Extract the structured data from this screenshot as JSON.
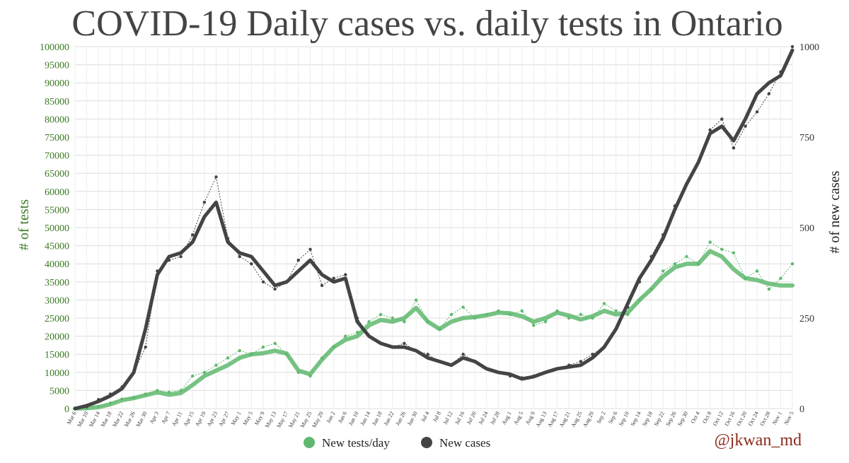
{
  "chart_data": {
    "type": "line",
    "title": "COVID-19 Daily cases vs. daily tests in Ontario",
    "ylabel_left": "# of tests",
    "ylabel_right": "# of new cases",
    "ylim_left": [
      0,
      100000
    ],
    "ylim_right": [
      0,
      1000
    ],
    "yticks_left": [
      "0",
      "5000",
      "10000",
      "15000",
      "20000",
      "25000",
      "30000",
      "35000",
      "40000",
      "45000",
      "50000",
      "55000",
      "60000",
      "65000",
      "70000",
      "75000",
      "80000",
      "85000",
      "90000",
      "95000",
      "100000"
    ],
    "yticks_right": [
      "0",
      "250",
      "500",
      "750",
      "1000"
    ],
    "xticks": [
      "Mar 6",
      "Mar 10",
      "Mar 14",
      "Mar 18",
      "Mar 22",
      "Mar 26",
      "Mar 30",
      "Apr 3",
      "Apr 7",
      "Apr 11",
      "Apr 15",
      "Apr 19",
      "Apr 23",
      "Apr 27",
      "May 1",
      "May 5",
      "May 9",
      "May 13",
      "May 17",
      "May 21",
      "May 25",
      "May 29",
      "Jun 2",
      "Jun 6",
      "Jun 10",
      "Jun 14",
      "Jun 18",
      "Jun 22",
      "Jun 26",
      "Jun 30",
      "Jul 4",
      "Jul 8",
      "Jul 12",
      "Jul 16",
      "Jul 20",
      "Jul 24",
      "Jul 28",
      "Aug 1",
      "Aug 5",
      "Aug 9",
      "Aug 13",
      "Aug 17",
      "Aug 21",
      "Aug 25",
      "Aug 29",
      "Sep 2",
      "Sep 6",
      "Sep 10",
      "Sep 14",
      "Sep 18",
      "Sep 22",
      "Sep 26",
      "Sep 30",
      "Oct 4",
      "Oct 8",
      "Oct 12",
      "Oct 16",
      "Oct 20",
      "Oct 24",
      "Oct 28",
      "Nov 1",
      "Nov 5"
    ],
    "series": [
      {
        "name": "New tests/day",
        "axis": "left",
        "color": "#5fb86f",
        "x": [
          0,
          4,
          8,
          12,
          16,
          20,
          24,
          28,
          32,
          36,
          40,
          44,
          48,
          52,
          56,
          60,
          64,
          68,
          72,
          76,
          80,
          84,
          88,
          92,
          96,
          100,
          104,
          108,
          112,
          116,
          120,
          124,
          128,
          132,
          136,
          140,
          144,
          148,
          152,
          156,
          160,
          164,
          168,
          172,
          176,
          180,
          184,
          188,
          192,
          196,
          200,
          204,
          208,
          212,
          216,
          220,
          224,
          228,
          232,
          236,
          240,
          244
        ],
        "daily": [
          0,
          200,
          600,
          1500,
          2600,
          3000,
          4000,
          5000,
          4500,
          5000,
          9000,
          10000,
          12000,
          14000,
          16000,
          15000,
          17000,
          18000,
          15000,
          10000,
          9000,
          14000,
          17000,
          20000,
          21000,
          24000,
          26000,
          25000,
          24000,
          30000,
          24000,
          22000,
          26000,
          28000,
          25000,
          26000,
          27000,
          26000,
          27000,
          23000,
          24000,
          27000,
          25000,
          26000,
          25000,
          29000,
          27000,
          26000,
          30000,
          33000,
          38000,
          40000,
          42000,
          40000,
          46000,
          44000,
          43000,
          36000,
          38000,
          33000,
          36000,
          40000
        ],
        "avg": [
          0,
          100,
          400,
          1200,
          2300,
          2900,
          3700,
          4500,
          3800,
          4300,
          6500,
          9000,
          10500,
          12000,
          14000,
          15000,
          15300,
          16000,
          15200,
          10500,
          9500,
          13500,
          17000,
          19000,
          20000,
          23000,
          24500,
          24000,
          25000,
          27800,
          24000,
          22000,
          24000,
          25000,
          25300,
          25800,
          26500,
          26300,
          25500,
          24000,
          25000,
          26500,
          25700,
          24600,
          25500,
          27000,
          26000,
          26500,
          30000,
          33000,
          36500,
          39000,
          40000,
          40000,
          43500,
          42000,
          38500,
          36000,
          35500,
          34500,
          34000,
          34000
        ]
      },
      {
        "name": "New cases",
        "axis": "right",
        "color": "#444444",
        "x": [
          0,
          4,
          8,
          12,
          16,
          20,
          24,
          28,
          32,
          36,
          40,
          44,
          48,
          52,
          56,
          60,
          64,
          68,
          72,
          76,
          80,
          84,
          88,
          92,
          96,
          100,
          104,
          108,
          112,
          116,
          120,
          124,
          128,
          132,
          136,
          140,
          144,
          148,
          152,
          156,
          160,
          164,
          168,
          172,
          176,
          180,
          184,
          188,
          192,
          196,
          200,
          204,
          208,
          212,
          216,
          220,
          224,
          228,
          232,
          236,
          240,
          244
        ],
        "daily": [
          0,
          5,
          25,
          40,
          60,
          100,
          170,
          380,
          410,
          420,
          480,
          570,
          640,
          470,
          420,
          400,
          350,
          330,
          350,
          410,
          440,
          340,
          360,
          370,
          250,
          200,
          180,
          170,
          180,
          160,
          150,
          130,
          120,
          150,
          130,
          110,
          100,
          90,
          85,
          90,
          100,
          110,
          120,
          130,
          150,
          170,
          220,
          280,
          350,
          420,
          480,
          560,
          620,
          680,
          770,
          800,
          720,
          780,
          820,
          870,
          930,
          1000
        ],
        "avg": [
          0,
          8,
          20,
          35,
          55,
          100,
          220,
          370,
          420,
          430,
          460,
          530,
          570,
          460,
          430,
          420,
          380,
          340,
          350,
          380,
          410,
          370,
          350,
          360,
          240,
          200,
          180,
          170,
          170,
          160,
          140,
          130,
          120,
          140,
          130,
          110,
          100,
          95,
          82,
          88,
          100,
          110,
          115,
          120,
          140,
          170,
          220,
          290,
          360,
          410,
          470,
          550,
          620,
          680,
          760,
          780,
          740,
          800,
          870,
          900,
          920,
          990
        ]
      }
    ],
    "legend": [
      "New tests/day",
      "New cases"
    ],
    "legend_position": "bottom-center",
    "grid": true
  },
  "credit": "@jkwan_md"
}
